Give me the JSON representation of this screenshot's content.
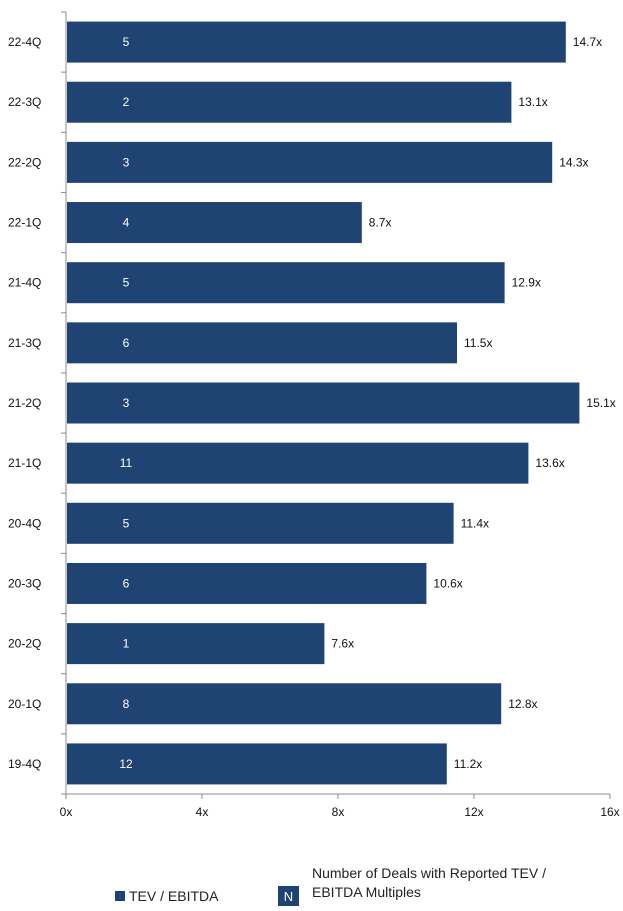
{
  "colors": {
    "bar": "#1F4373",
    "axis": "#8C8C8C",
    "count_text": "#FFFFFF"
  },
  "chart_data": {
    "type": "bar",
    "orientation": "horizontal",
    "categories": [
      "22-4Q",
      "22-3Q",
      "22-2Q",
      "22-1Q",
      "21-4Q",
      "21-3Q",
      "21-2Q",
      "21-1Q",
      "20-4Q",
      "20-3Q",
      "20-2Q",
      "20-1Q",
      "19-4Q"
    ],
    "series": [
      {
        "name": "TEV / EBITDA",
        "values": [
          14.7,
          13.1,
          14.3,
          8.7,
          12.9,
          11.5,
          15.1,
          13.6,
          11.4,
          10.6,
          7.6,
          12.8,
          11.2
        ],
        "value_labels": [
          "14.7x",
          "13.1x",
          "14.3x",
          "8.7x",
          "12.9x",
          "11.5x",
          "15.1x",
          "13.6x",
          "11.4x",
          "10.6x",
          "7.6x",
          "12.8x",
          "11.2x"
        ]
      }
    ],
    "deal_counts": [
      "5",
      "2",
      "3",
      "4",
      "5",
      "6",
      "3",
      "11",
      "5",
      "6",
      "1",
      "8",
      "12"
    ],
    "xlim": [
      0,
      16
    ],
    "xticks": [
      0,
      4,
      8,
      12,
      16
    ],
    "xtick_labels": [
      "0x",
      "4x",
      "8x",
      "12x",
      "16x"
    ],
    "grid": false,
    "legend_position": "bottom"
  },
  "legend": {
    "tev_label": "TEV / EBITDA",
    "n_marker": "N",
    "n_label_line1": "Number of Deals with Reported TEV /",
    "n_label_line2": "EBITDA Multiples"
  }
}
